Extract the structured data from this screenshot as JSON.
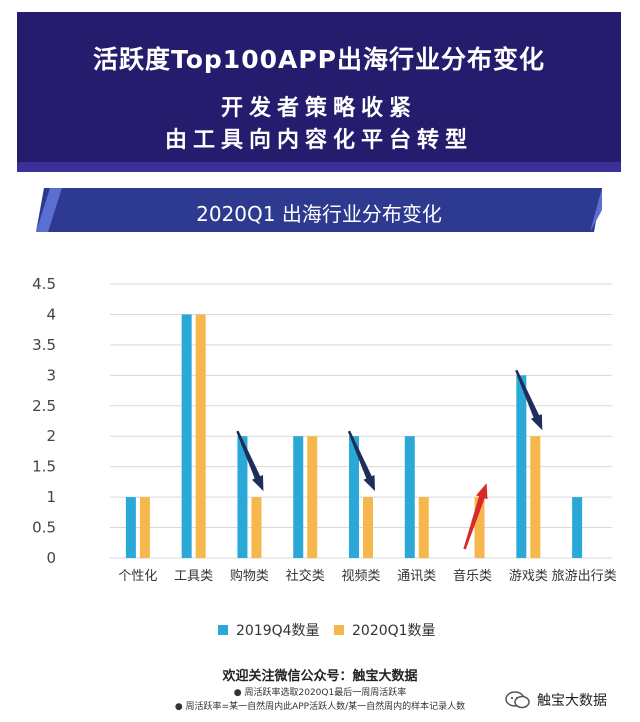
{
  "header": {
    "title": "活跃度Top100APP出海行业分布变化",
    "subtitle_line1": "开发者策略收紧",
    "subtitle_line2": "由工具向内容化平台转型"
  },
  "section_title": "2020Q1 出海行业分布变化",
  "colors": {
    "banner": "#251c6e",
    "series_2019q4": "#2aa8d8",
    "series_2020q1": "#f6b74d",
    "arrow_down": "#1f2d5c",
    "arrow_up": "#d92a2a"
  },
  "chart_data": {
    "type": "bar",
    "categories": [
      "个性化",
      "工具类",
      "购物类",
      "社交类",
      "视频类",
      "通讯类",
      "音乐类",
      "游戏类",
      "旅游出行类"
    ],
    "series": [
      {
        "name": "2019Q4数量",
        "values": [
          1,
          4,
          2,
          2,
          2,
          2,
          0,
          3,
          1
        ]
      },
      {
        "name": "2020Q1数量",
        "values": [
          1,
          4,
          1,
          2,
          1,
          1,
          1,
          2,
          0
        ]
      }
    ],
    "yticks": [
      "0",
      "0.5",
      "1",
      "1.5",
      "2",
      "2.5",
      "3",
      "3.5",
      "4",
      "4.5"
    ],
    "ylim": [
      0,
      4.5
    ],
    "grid": true,
    "legend": "bottom",
    "annotations": [
      {
        "category": "购物类",
        "direction": "down"
      },
      {
        "category": "视频类",
        "direction": "down"
      },
      {
        "category": "音乐类",
        "direction": "up"
      },
      {
        "category": "游戏类",
        "direction": "down"
      }
    ]
  },
  "footer": {
    "follow": "欢迎关注微信公众号：触宝大数据",
    "note1": "● 周活跃率选取2020Q1最后一周周活跃率",
    "note2": "● 周活跃率=某一自然周内此APP活跃人数/某一自然周内的样本记录人数",
    "brand": "触宝大数据"
  }
}
